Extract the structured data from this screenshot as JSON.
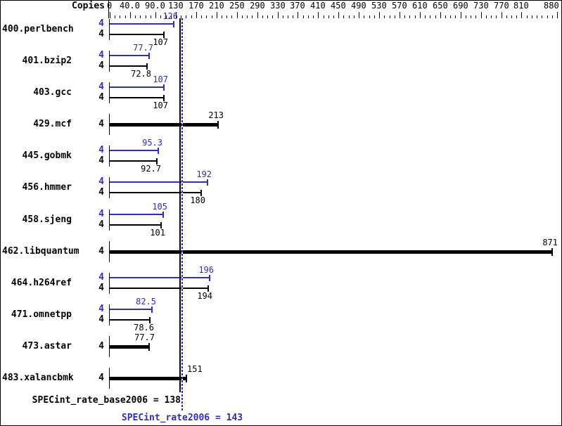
{
  "chart_data": {
    "type": "bar",
    "orientation": "horizontal",
    "copies_header": "Copies",
    "colors": {
      "peak_blue": "#2e2eb8",
      "base_black": "#000000",
      "background": "#ffffff"
    },
    "axis": {
      "min": 0,
      "max": 880,
      "tick_interval": 10,
      "position": "top",
      "labels": [
        {
          "value": 0,
          "text": "0"
        },
        {
          "value": 40,
          "text": "40.0"
        },
        {
          "value": 90,
          "text": "90.0"
        },
        {
          "value": 130,
          "text": "130"
        },
        {
          "value": 170,
          "text": "170"
        },
        {
          "value": 210,
          "text": "210"
        },
        {
          "value": 250,
          "text": "250"
        },
        {
          "value": 290,
          "text": "290"
        },
        {
          "value": 330,
          "text": "330"
        },
        {
          "value": 370,
          "text": "370"
        },
        {
          "value": 410,
          "text": "410"
        },
        {
          "value": 450,
          "text": "450"
        },
        {
          "value": 490,
          "text": "490"
        },
        {
          "value": 530,
          "text": "530"
        },
        {
          "value": 570,
          "text": "570"
        },
        {
          "value": 610,
          "text": "610"
        },
        {
          "value": 650,
          "text": "650"
        },
        {
          "value": 690,
          "text": "690"
        },
        {
          "value": 730,
          "text": "730"
        },
        {
          "value": 770,
          "text": "770"
        },
        {
          "value": 810,
          "text": "810"
        },
        {
          "value": 880,
          "text": "880"
        }
      ]
    },
    "benchmarks": [
      {
        "name": "400.perlbench",
        "copies": "4",
        "peak": {
          "value": 126,
          "label": "126"
        },
        "base": {
          "value": 107,
          "label": "107"
        },
        "single": false
      },
      {
        "name": "401.bzip2",
        "copies": "4",
        "peak": {
          "value": 77.7,
          "label": "77.7"
        },
        "base": {
          "value": 72.8,
          "label": "72.8"
        },
        "single": false
      },
      {
        "name": "403.gcc",
        "copies": "4",
        "peak": {
          "value": 107,
          "label": "107"
        },
        "base": {
          "value": 107,
          "label": "107"
        },
        "single": false
      },
      {
        "name": "429.mcf",
        "copies": "4",
        "peak": null,
        "base": {
          "value": 213,
          "label": "213"
        },
        "single": true
      },
      {
        "name": "445.gobmk",
        "copies": "4",
        "peak": {
          "value": 95.3,
          "label": "95.3"
        },
        "base": {
          "value": 92.7,
          "label": "92.7"
        },
        "single": false
      },
      {
        "name": "456.hmmer",
        "copies": "4",
        "peak": {
          "value": 192,
          "label": "192"
        },
        "base": {
          "value": 180,
          "label": "180"
        },
        "single": false
      },
      {
        "name": "458.sjeng",
        "copies": "4",
        "peak": {
          "value": 105,
          "label": "105"
        },
        "base": {
          "value": 101,
          "label": "101"
        },
        "single": false
      },
      {
        "name": "462.libquantum",
        "copies": "4",
        "peak": null,
        "base": {
          "value": 871,
          "label": "871"
        },
        "single": true
      },
      {
        "name": "464.h264ref",
        "copies": "4",
        "peak": {
          "value": 196,
          "label": "196"
        },
        "base": {
          "value": 194,
          "label": "194"
        },
        "single": false
      },
      {
        "name": "471.omnetpp",
        "copies": "4",
        "peak": {
          "value": 82.5,
          "label": "82.5"
        },
        "base": {
          "value": 78.6,
          "label": "78.6"
        },
        "single": false
      },
      {
        "name": "473.astar",
        "copies": "4",
        "peak": null,
        "base": {
          "value": 77.7,
          "label": "77.7"
        },
        "single": true
      },
      {
        "name": "483.xalancbmk",
        "copies": "4",
        "peak": null,
        "base": {
          "value": 151,
          "label": "151"
        },
        "single": true,
        "label_side": "right"
      }
    ],
    "medians": {
      "base": {
        "value": 138,
        "label": "SPECint_rate_base2006 = 138"
      },
      "peak": {
        "value": 143,
        "label": "SPECint_rate2006 = 143"
      }
    }
  }
}
